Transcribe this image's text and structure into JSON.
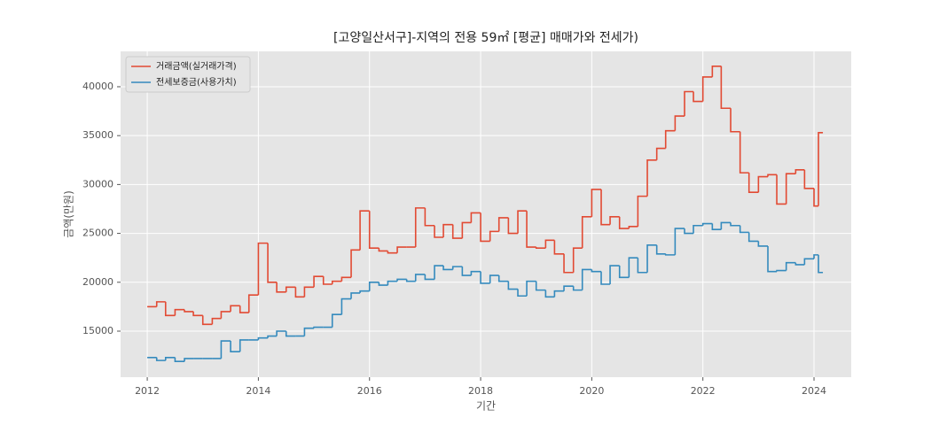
{
  "chart_data": {
    "type": "line",
    "drawstyle": "steps",
    "title": "[고양일산서구]-지역의 전용 59㎡ [평균] 매매가와 전세가)",
    "xlabel": "기간",
    "ylabel": "금액(만원)",
    "x": [
      2012.0,
      2012.17,
      2012.33,
      2012.5,
      2012.67,
      2012.83,
      2013.0,
      2013.17,
      2013.33,
      2013.5,
      2013.67,
      2013.83,
      2014.0,
      2014.17,
      2014.33,
      2014.5,
      2014.67,
      2014.83,
      2015.0,
      2015.17,
      2015.33,
      2015.5,
      2015.67,
      2015.83,
      2016.0,
      2016.17,
      2016.33,
      2016.5,
      2016.67,
      2016.83,
      2017.0,
      2017.17,
      2017.33,
      2017.5,
      2017.67,
      2017.83,
      2018.0,
      2018.17,
      2018.33,
      2018.5,
      2018.67,
      2018.83,
      2019.0,
      2019.17,
      2019.33,
      2019.5,
      2019.67,
      2019.83,
      2020.0,
      2020.17,
      2020.33,
      2020.5,
      2020.67,
      2020.83,
      2021.0,
      2021.17,
      2021.33,
      2021.5,
      2021.67,
      2021.83,
      2022.0,
      2022.17,
      2022.33,
      2022.5,
      2022.67,
      2022.83,
      2023.0,
      2023.17,
      2023.33,
      2023.5,
      2023.67,
      2023.83,
      2024.0,
      2024.08
    ],
    "series": [
      {
        "name": "거래금액(실거래가격)",
        "color": "#e24a33",
        "values": [
          17500,
          18000,
          16600,
          17200,
          17000,
          16600,
          15700,
          16300,
          17000,
          17600,
          16900,
          18700,
          24000,
          20000,
          19000,
          19500,
          18500,
          19500,
          20600,
          19800,
          20100,
          20500,
          23300,
          27300,
          23500,
          23200,
          23000,
          23600,
          23600,
          27600,
          25800,
          24600,
          25900,
          24500,
          26100,
          27100,
          24200,
          25200,
          26600,
          25000,
          27300,
          23600,
          23500,
          24300,
          22900,
          21000,
          23500,
          26700,
          29500,
          25900,
          26700,
          25500,
          25700,
          28800,
          32500,
          33700,
          35500,
          37000,
          39500,
          38500,
          41000,
          42100,
          37800,
          35400,
          31200,
          29200,
          30800,
          31000,
          28000,
          31100,
          31500,
          29600,
          27800,
          35300
        ]
      },
      {
        "name": "전세보증금(사용가치)",
        "color": "#348abd",
        "values": [
          12300,
          12000,
          12300,
          11900,
          12200,
          12200,
          12200,
          12200,
          14000,
          12900,
          14100,
          14100,
          14300,
          14500,
          15000,
          14500,
          14500,
          15300,
          15400,
          15400,
          16700,
          18300,
          18900,
          19100,
          20000,
          19700,
          20100,
          20300,
          20100,
          20800,
          20300,
          21700,
          21300,
          21600,
          20700,
          21100,
          19900,
          20700,
          20100,
          19300,
          18600,
          20100,
          19200,
          18500,
          19100,
          19600,
          19200,
          21300,
          21100,
          19800,
          21700,
          20500,
          22500,
          21000,
          23800,
          22900,
          22800,
          25500,
          25000,
          25800,
          26000,
          25400,
          26100,
          25800,
          25100,
          24200,
          23700,
          21100,
          21200,
          22000,
          21800,
          22400,
          22800,
          21000
        ]
      }
    ],
    "xlim": [
      2011.52,
      2024.67
    ],
    "xticks": [
      2012,
      2014,
      2016,
      2018,
      2020,
      2022,
      2024
    ],
    "ylim": [
      10290,
      43620
    ],
    "yticks": [
      15000,
      20000,
      25000,
      30000,
      35000,
      40000
    ],
    "grid": true,
    "legend": "upper left"
  }
}
